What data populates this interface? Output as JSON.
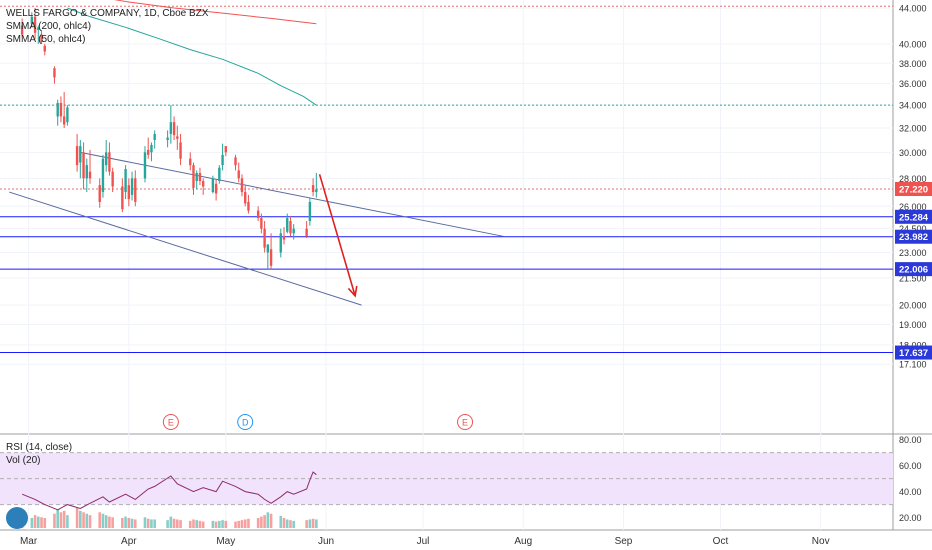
{
  "header": {
    "symbol": "WELLS FARGO & COMPANY, 1D, Cboe BZX",
    "indicator_1": "SMMA (200, ohlc4)",
    "indicator_2": "SMMA (50, ohlc4)"
  },
  "lower_pane": {
    "indicator_1": "RSI (14, close)",
    "indicator_2": "Vol (20)"
  },
  "colors": {
    "up": "#26a69a",
    "down": "#ef5350",
    "smma200": "#ef5350",
    "smma50": "#26a69a",
    "channel": "#5b6aa0",
    "level_line": "#1a1aff",
    "level_badge": "#2b39d8",
    "price_badge": "#ef5350",
    "rsi_line": "#8e2a6e",
    "rsi_band": "#f1e3fb",
    "arrow": "#e02020",
    "dotted_red": "#e07070",
    "dotted_green": "#26a69a"
  },
  "chart_data": {
    "type": "candlestick",
    "price_axis_ticks": [
      "44.000",
      "40.000",
      "38.000",
      "36.000",
      "34.000",
      "32.000",
      "30.000",
      "28.000",
      "26.000",
      "24.500",
      "23.000",
      "21.500",
      "20.000",
      "19.000",
      "18.000",
      "17.100"
    ],
    "time_axis_ticks": [
      "Mar",
      "Apr",
      "May",
      "Jun",
      "Jul",
      "Aug",
      "Sep",
      "Oct",
      "Nov"
    ],
    "rsi_axis_ticks": [
      "80.00",
      "60.00",
      "40.00",
      "20.00"
    ],
    "current_price": "27.220",
    "horizontal_levels": [
      "25.284",
      "23.982",
      "22.006",
      "17.637"
    ],
    "dotted_levels": [
      44.2,
      34.0
    ],
    "earnings_markers": [
      {
        "label": "E",
        "date": "2020-04-14"
      },
      {
        "label": "D",
        "date": "2020-05-07"
      },
      {
        "label": "E",
        "date": "2020-07-14"
      }
    ],
    "candles": [
      {
        "d": "2020-02-28",
        "o": 42.0,
        "h": 42.8,
        "l": 40.8,
        "c": 41.0
      },
      {
        "d": "2020-03-02",
        "o": 42.2,
        "h": 43.5,
        "l": 41.8,
        "c": 43.0
      },
      {
        "d": "2020-03-03",
        "o": 43.0,
        "h": 44.0,
        "l": 40.5,
        "c": 41.2
      },
      {
        "d": "2020-03-04",
        "o": 41.5,
        "h": 42.0,
        "l": 40.0,
        "c": 41.8
      },
      {
        "d": "2020-03-05",
        "o": 41.0,
        "h": 41.5,
        "l": 40.0,
        "c": 40.2
      },
      {
        "d": "2020-03-06",
        "o": 39.8,
        "h": 40.0,
        "l": 38.8,
        "c": 39.2
      },
      {
        "d": "2020-03-09",
        "o": 37.5,
        "h": 37.7,
        "l": 36.0,
        "c": 36.6
      },
      {
        "d": "2020-03-10",
        "o": 33.0,
        "h": 34.5,
        "l": 32.2,
        "c": 34.2
      },
      {
        "d": "2020-03-11",
        "o": 34.2,
        "h": 34.8,
        "l": 32.5,
        "c": 33.0
      },
      {
        "d": "2020-03-12",
        "o": 33.0,
        "h": 35.2,
        "l": 32.0,
        "c": 32.3
      },
      {
        "d": "2020-03-13",
        "o": 32.5,
        "h": 34.0,
        "l": 32.2,
        "c": 33.8
      },
      {
        "d": "2020-03-16",
        "o": 30.5,
        "h": 31.5,
        "l": 28.5,
        "c": 29.0
      },
      {
        "d": "2020-03-17",
        "o": 29.2,
        "h": 31.0,
        "l": 28.0,
        "c": 30.5
      },
      {
        "d": "2020-03-18",
        "o": 30.0,
        "h": 30.8,
        "l": 27.2,
        "c": 28.0
      },
      {
        "d": "2020-03-19",
        "o": 28.0,
        "h": 29.5,
        "l": 27.0,
        "c": 29.0
      },
      {
        "d": "2020-03-20",
        "o": 28.5,
        "h": 30.2,
        "l": 27.6,
        "c": 28.0
      },
      {
        "d": "2020-03-23",
        "o": 27.5,
        "h": 28.0,
        "l": 25.9,
        "c": 26.3
      },
      {
        "d": "2020-03-24",
        "o": 27.0,
        "h": 29.8,
        "l": 26.6,
        "c": 29.5
      },
      {
        "d": "2020-03-25",
        "o": 29.0,
        "h": 31.0,
        "l": 28.5,
        "c": 30.0
      },
      {
        "d": "2020-03-26",
        "o": 30.0,
        "h": 30.8,
        "l": 28.2,
        "c": 28.5
      },
      {
        "d": "2020-03-27",
        "o": 28.5,
        "h": 28.8,
        "l": 27.0,
        "c": 27.4
      },
      {
        "d": "2020-03-30",
        "o": 27.4,
        "h": 28.0,
        "l": 25.6,
        "c": 25.8
      },
      {
        "d": "2020-03-31",
        "o": 27.0,
        "h": 29.0,
        "l": 26.5,
        "c": 28.7
      },
      {
        "d": "2020-04-01",
        "o": 27.5,
        "h": 28.0,
        "l": 26.0,
        "c": 26.5
      },
      {
        "d": "2020-04-02",
        "o": 26.8,
        "h": 28.5,
        "l": 26.4,
        "c": 28.0
      },
      {
        "d": "2020-04-03",
        "o": 28.0,
        "h": 28.6,
        "l": 26.0,
        "c": 26.3
      },
      {
        "d": "2020-04-06",
        "o": 28.0,
        "h": 30.5,
        "l": 27.7,
        "c": 30.0
      },
      {
        "d": "2020-04-07",
        "o": 30.2,
        "h": 31.2,
        "l": 29.5,
        "c": 29.8
      },
      {
        "d": "2020-04-08",
        "o": 30.0,
        "h": 30.8,
        "l": 29.3,
        "c": 30.6
      },
      {
        "d": "2020-04-09",
        "o": 31.0,
        "h": 31.8,
        "l": 30.3,
        "c": 31.5
      },
      {
        "d": "2020-04-13",
        "o": 31.0,
        "h": 31.8,
        "l": 30.4,
        "c": 31.2
      },
      {
        "d": "2020-04-14",
        "o": 31.5,
        "h": 34.0,
        "l": 30.7,
        "c": 32.5
      },
      {
        "d": "2020-04-15",
        "o": 32.5,
        "h": 33.0,
        "l": 31.0,
        "c": 31.4
      },
      {
        "d": "2020-04-16",
        "o": 31.3,
        "h": 32.2,
        "l": 30.2,
        "c": 31.1
      },
      {
        "d": "2020-04-17",
        "o": 30.8,
        "h": 31.5,
        "l": 29.0,
        "c": 29.5
      },
      {
        "d": "2020-04-20",
        "o": 29.5,
        "h": 30.0,
        "l": 28.6,
        "c": 29.0
      },
      {
        "d": "2020-04-21",
        "o": 29.0,
        "h": 29.2,
        "l": 26.8,
        "c": 27.3
      },
      {
        "d": "2020-04-22",
        "o": 27.8,
        "h": 28.6,
        "l": 27.2,
        "c": 28.4
      },
      {
        "d": "2020-04-23",
        "o": 28.4,
        "h": 28.8,
        "l": 27.5,
        "c": 27.8
      },
      {
        "d": "2020-04-24",
        "o": 27.8,
        "h": 28.0,
        "l": 26.8,
        "c": 27.4
      },
      {
        "d": "2020-04-27",
        "o": 27.0,
        "h": 28.2,
        "l": 26.9,
        "c": 28.0
      },
      {
        "d": "2020-04-28",
        "o": 27.6,
        "h": 27.9,
        "l": 26.4,
        "c": 26.9
      },
      {
        "d": "2020-04-29",
        "o": 27.8,
        "h": 29.0,
        "l": 27.6,
        "c": 28.8
      },
      {
        "d": "2020-04-30",
        "o": 29.0,
        "h": 30.7,
        "l": 28.6,
        "c": 29.8
      },
      {
        "d": "2020-05-01",
        "o": 30.5,
        "h": 30.5,
        "l": 29.7,
        "c": 30.0
      },
      {
        "d": "2020-05-04",
        "o": 29.6,
        "h": 29.8,
        "l": 28.6,
        "c": 29.0
      },
      {
        "d": "2020-05-05",
        "o": 28.6,
        "h": 29.2,
        "l": 27.7,
        "c": 28.0
      },
      {
        "d": "2020-05-06",
        "o": 28.0,
        "h": 28.3,
        "l": 26.7,
        "c": 27.0
      },
      {
        "d": "2020-05-07",
        "o": 27.0,
        "h": 27.5,
        "l": 26.0,
        "c": 26.2
      },
      {
        "d": "2020-05-08",
        "o": 26.3,
        "h": 26.8,
        "l": 25.5,
        "c": 25.7
      },
      {
        "d": "2020-05-11",
        "o": 25.7,
        "h": 26.0,
        "l": 25.0,
        "c": 25.2
      },
      {
        "d": "2020-05-12",
        "o": 25.2,
        "h": 25.5,
        "l": 24.2,
        "c": 24.5
      },
      {
        "d": "2020-05-13",
        "o": 24.5,
        "h": 25.0,
        "l": 23.0,
        "c": 23.3
      },
      {
        "d": "2020-05-14",
        "o": 23.0,
        "h": 23.5,
        "l": 22.0,
        "c": 23.5
      },
      {
        "d": "2020-05-15",
        "o": 23.2,
        "h": 24.2,
        "l": 22.0,
        "c": 22.2
      },
      {
        "d": "2020-05-18",
        "o": 23.0,
        "h": 24.5,
        "l": 22.7,
        "c": 24.2
      },
      {
        "d": "2020-05-19",
        "o": 24.0,
        "h": 24.6,
        "l": 23.5,
        "c": 23.8
      },
      {
        "d": "2020-05-20",
        "o": 24.3,
        "h": 25.5,
        "l": 24.2,
        "c": 25.2
      },
      {
        "d": "2020-05-21",
        "o": 25.0,
        "h": 25.3,
        "l": 24.0,
        "c": 24.2
      },
      {
        "d": "2020-05-22",
        "o": 24.2,
        "h": 24.8,
        "l": 23.8,
        "c": 24.5
      },
      {
        "d": "2020-05-26",
        "o": 24.5,
        "h": 25.0,
        "l": 23.9,
        "c": 24.0
      },
      {
        "d": "2020-05-27",
        "o": 25.0,
        "h": 26.6,
        "l": 24.7,
        "c": 26.3
      },
      {
        "d": "2020-05-28",
        "o": 27.5,
        "h": 28.0,
        "l": 26.7,
        "c": 27.0
      },
      {
        "d": "2020-05-29",
        "o": 27.0,
        "h": 28.4,
        "l": 26.6,
        "c": 27.2
      }
    ],
    "smma200": [
      [
        "2020-02-28",
        47.0
      ],
      [
        "2020-03-10",
        46.3
      ],
      [
        "2020-03-20",
        45.5
      ],
      [
        "2020-04-01",
        44.7
      ],
      [
        "2020-04-15",
        44.0
      ],
      [
        "2020-04-30",
        43.4
      ],
      [
        "2020-05-15",
        42.8
      ],
      [
        "2020-05-29",
        42.2
      ]
    ],
    "smma50": [
      [
        "2020-03-13",
        44.0
      ],
      [
        "2020-03-20",
        43.0
      ],
      [
        "2020-03-31",
        41.8
      ],
      [
        "2020-04-10",
        40.6
      ],
      [
        "2020-04-20",
        39.4
      ],
      [
        "2020-04-30",
        38.4
      ],
      [
        "2020-05-11",
        37.0
      ],
      [
        "2020-05-18",
        35.8
      ],
      [
        "2020-05-25",
        34.8
      ],
      [
        "2020-05-29",
        34.0
      ]
    ],
    "rsi": [
      [
        "2020-02-28",
        38
      ],
      [
        "2020-03-03",
        34
      ],
      [
        "2020-03-06",
        30
      ],
      [
        "2020-03-10",
        26
      ],
      [
        "2020-03-13",
        30
      ],
      [
        "2020-03-17",
        27
      ],
      [
        "2020-03-20",
        31
      ],
      [
        "2020-03-24",
        36
      ],
      [
        "2020-03-26",
        32
      ],
      [
        "2020-03-31",
        38
      ],
      [
        "2020-04-03",
        34
      ],
      [
        "2020-04-07",
        42
      ],
      [
        "2020-04-09",
        44
      ],
      [
        "2020-04-14",
        52
      ],
      [
        "2020-04-16",
        46
      ],
      [
        "2020-04-21",
        40
      ],
      [
        "2020-04-24",
        43
      ],
      [
        "2020-04-28",
        40
      ],
      [
        "2020-04-30",
        48
      ],
      [
        "2020-05-04",
        44
      ],
      [
        "2020-05-07",
        40
      ],
      [
        "2020-05-11",
        38
      ],
      [
        "2020-05-13",
        34
      ],
      [
        "2020-05-15",
        31
      ],
      [
        "2020-05-18",
        36
      ],
      [
        "2020-05-20",
        40
      ],
      [
        "2020-05-22",
        38
      ],
      [
        "2020-05-26",
        42
      ],
      [
        "2020-05-27",
        49
      ],
      [
        "2020-05-28",
        55
      ],
      [
        "2020-05-29",
        53
      ]
    ],
    "rsi_band": [
      30,
      70
    ],
    "rsi_ylim": [
      12,
      82
    ],
    "volume": [
      12,
      14,
      18,
      16,
      15,
      14,
      20,
      26,
      22,
      24,
      18,
      28,
      24,
      22,
      20,
      18,
      22,
      20,
      18,
      16,
      15,
      14,
      16,
      14,
      13,
      12,
      15,
      13,
      12,
      12,
      11,
      16,
      13,
      12,
      11,
      10,
      12,
      11,
      10,
      9,
      10,
      9,
      10,
      11,
      10,
      9,
      10,
      11,
      12,
      13,
      14,
      16,
      18,
      22,
      20,
      17,
      14,
      12,
      11,
      10,
      11,
      12,
      13,
      12
    ],
    "channel_upper": [
      [
        "2020-03-17",
        30.0
      ],
      [
        "2020-07-26",
        24.0
      ]
    ],
    "channel_lower": [
      [
        "2020-02-24",
        27.0
      ],
      [
        "2020-06-12",
        20.0
      ]
    ],
    "projection_arrow": [
      [
        "2020-05-30",
        28.3
      ],
      [
        "2020-06-10",
        20.5
      ]
    ]
  }
}
